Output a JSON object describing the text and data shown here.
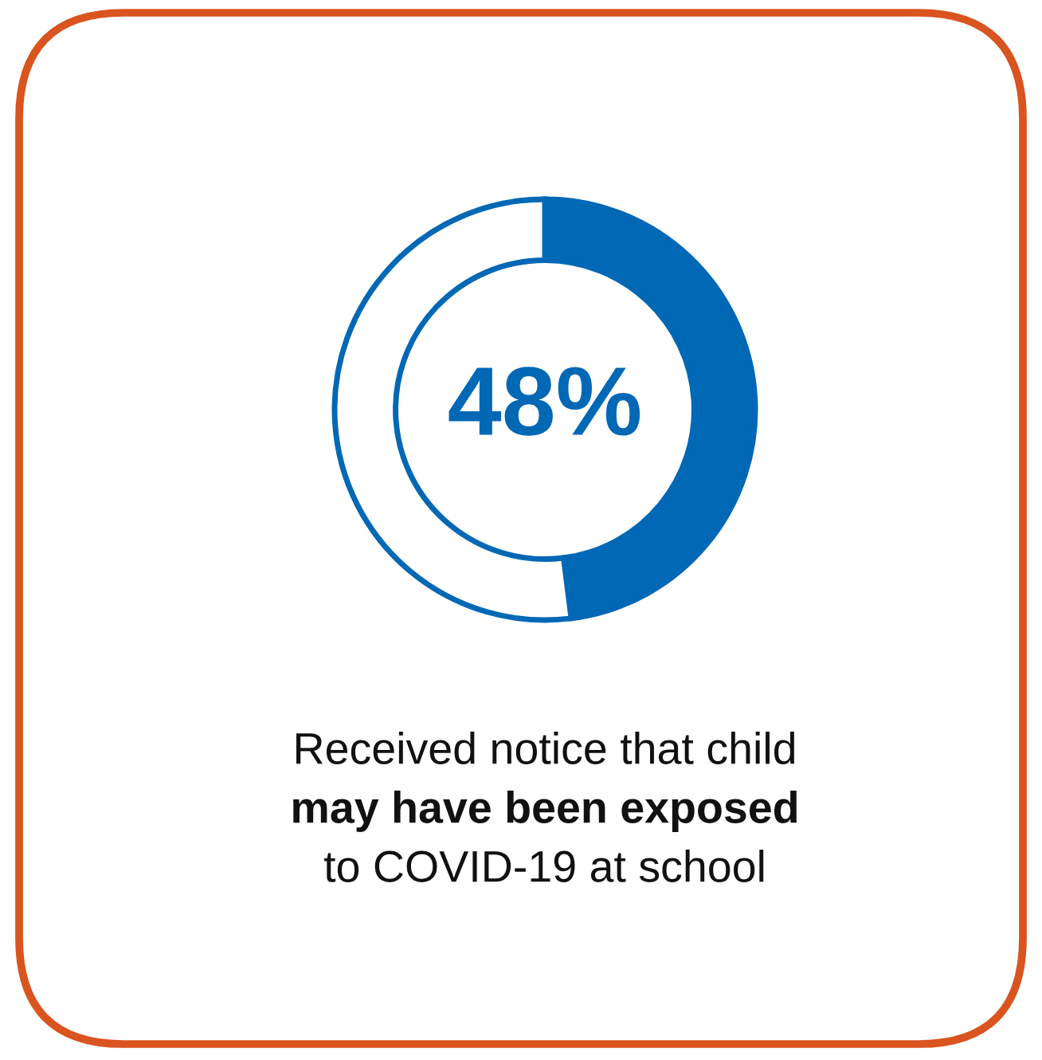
{
  "chart_data": {
    "type": "donut",
    "categories": [
      null,
      null
    ],
    "values": [
      48,
      52
    ],
    "colors": [
      "#0068b5",
      "#ffffff"
    ],
    "value_labels": [
      "48%",
      null
    ],
    "annotations": [
      "Received notice that child",
      "may have been exposed",
      "to COVID-19 at school"
    ]
  }
}
